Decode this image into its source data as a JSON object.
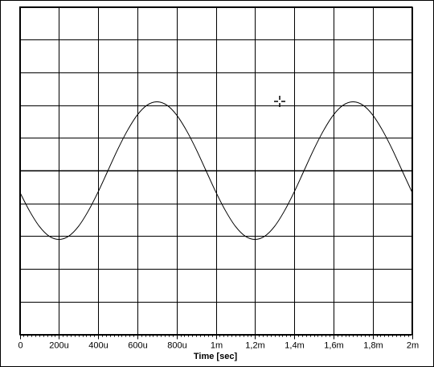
{
  "chart_data": {
    "type": "line",
    "x_label": "Time [sec]",
    "x": [
      0,
      5e-05,
      0.0001,
      0.00015,
      0.0002,
      0.00025,
      0.0003,
      0.00035,
      0.0004,
      0.00045,
      0.0005,
      0.00055,
      0.0006,
      0.00065,
      0.0007,
      0.00075,
      0.0008,
      0.00085,
      0.0009,
      0.00095,
      0.001,
      0.00105,
      0.0011,
      0.00115,
      0.0012,
      0.00125,
      0.0013,
      0.00135,
      0.0014,
      0.00145,
      0.0015,
      0.00155,
      0.0016,
      0.00165,
      0.0017,
      0.00175,
      0.0018,
      0.00185,
      0.0019,
      0.00195,
      0.002
    ],
    "series": [
      {
        "color": "#000000",
        "values": [
          -0.65,
          -1.23,
          -1.7,
          -2,
          -2.1,
          -2,
          -1.7,
          -1.23,
          -0.65,
          0,
          0.65,
          1.23,
          1.7,
          2,
          2.1,
          2,
          1.7,
          1.23,
          0.65,
          0,
          -0.65,
          -1.23,
          -1.7,
          -2,
          -2.1,
          -2,
          -1.7,
          -1.23,
          -0.65,
          0,
          0.65,
          1.23,
          1.7,
          2,
          2.1,
          2,
          1.7,
          1.23,
          0.65,
          0,
          -0.65
        ]
      }
    ],
    "xlim": [
      0,
      0.002
    ],
    "xticks": [
      0,
      {
        "value": 0.0002,
        "label": "200u"
      },
      {
        "value": 0.0004,
        "label": "400u"
      },
      {
        "value": 0.0006,
        "label": "600u"
      },
      {
        "value": 0.0008,
        "label": "800u"
      },
      {
        "value": 0.001,
        "label": "1m"
      },
      {
        "value": 0.0012,
        "label": "1,2m"
      },
      {
        "value": 0.0014,
        "label": "1,4m"
      },
      {
        "value": 0.0016,
        "label": "1,6m"
      },
      {
        "value": 0.0018,
        "label": "1,8m"
      },
      {
        "value": 0.002,
        "label": "2m"
      }
    ],
    "ylim": [
      -5,
      5
    ],
    "yticks": [
      -5,
      -4,
      -3,
      -2,
      -1,
      0,
      1,
      2,
      3,
      4,
      5
    ],
    "grid": true
  }
}
